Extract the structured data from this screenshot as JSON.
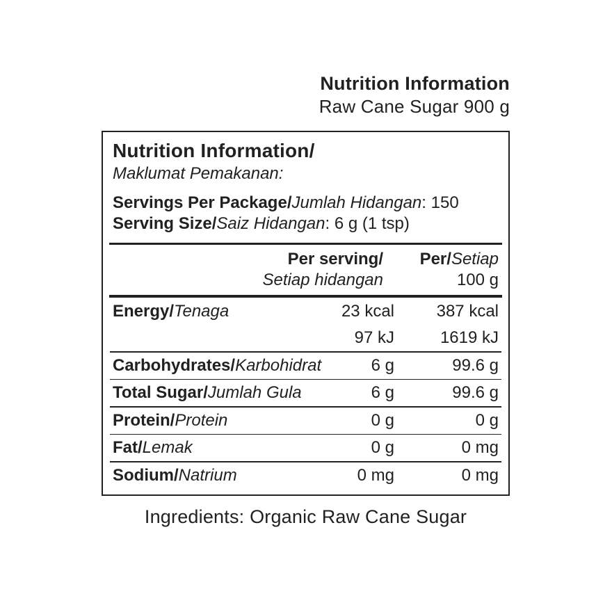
{
  "page": {
    "title": "Nutrition Information",
    "subtitle": "Raw Cane Sugar 900 g",
    "ingredients": "Ingredients: Organic Raw Cane Sugar"
  },
  "panel": {
    "heading_en": "Nutrition Information/",
    "heading_ms": "Maklumat Pemakanan:",
    "servings_per_package": {
      "label_en": "Servings Per Package/",
      "label_ms": "Jumlah Hidangan",
      "value": ": 150"
    },
    "serving_size": {
      "label_en": "Serving Size/",
      "label_ms": "Saiz Hidangan",
      "value": ": 6 g (1 tsp)"
    },
    "columns": {
      "per_serving_line1": "Per serving/",
      "per_serving_line2": "Setiap hidangan",
      "per_100g_bold": "Per/",
      "per_100g_italic": "Setiap",
      "per_100g_line2": "100 g"
    },
    "rows": [
      {
        "label_en": "Energy/",
        "label_ms": "Tenaga",
        "per_serving": "23 kcal",
        "per_100g": "387 kcal"
      },
      {
        "label_en": "",
        "label_ms": "",
        "per_serving": "97 kJ",
        "per_100g": "1619 kJ"
      },
      {
        "label_en": "Carbohydrates/",
        "label_ms": "Karbohidrat",
        "per_serving": "6 g",
        "per_100g": "99.6 g"
      },
      {
        "label_en": "Total Sugar/",
        "label_ms": "Jumlah Gula",
        "per_serving": "6 g",
        "per_100g": "99.6 g"
      },
      {
        "label_en": "Protein/",
        "label_ms": "Protein",
        "per_serving": "0 g",
        "per_100g": "0 g"
      },
      {
        "label_en": "Fat/",
        "label_ms": "Lemak",
        "per_serving": "0 g",
        "per_100g": "0 mg"
      },
      {
        "label_en": "Sodium/",
        "label_ms": "Natrium",
        "per_serving": "0 mg",
        "per_100g": "0 mg"
      }
    ]
  },
  "colors": {
    "text": "#232021",
    "border": "#232021",
    "background": "#ffffff"
  }
}
